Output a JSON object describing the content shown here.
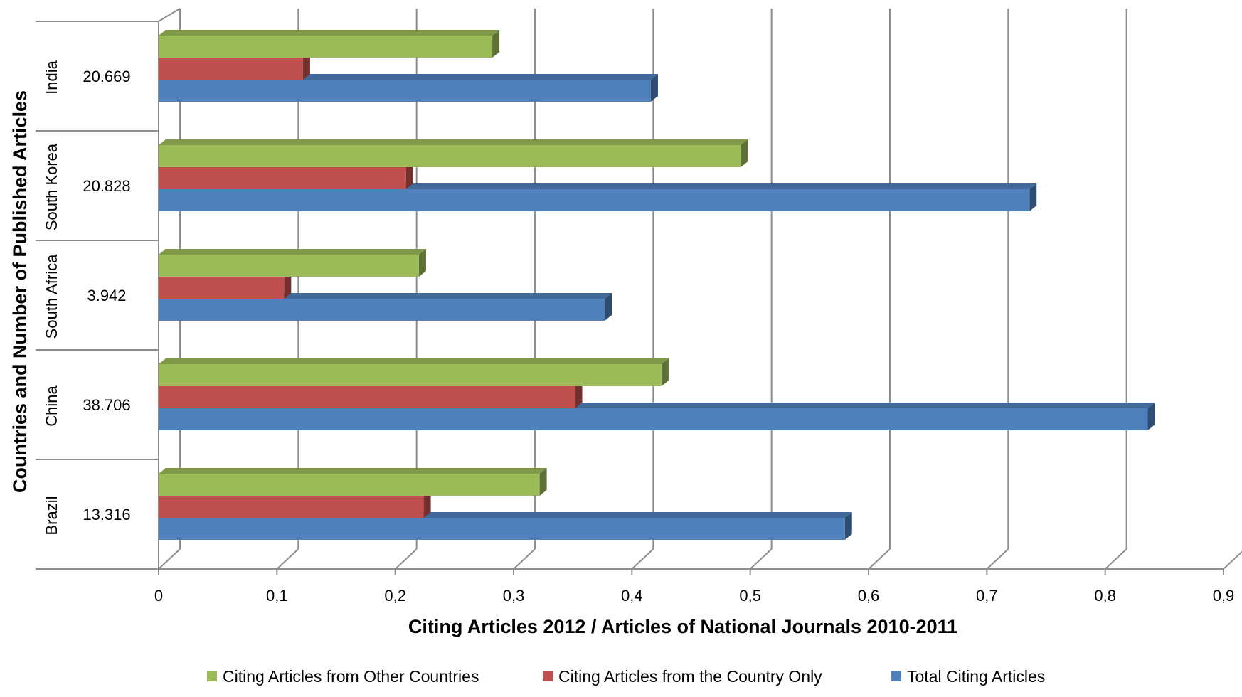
{
  "chart_data": {
    "type": "bar",
    "orientation": "horizontal",
    "style": "3d",
    "categories": [
      "India",
      "South Korea",
      "South Africa",
      "China",
      "Brazil"
    ],
    "category_counts": [
      "20.669",
      "20.828",
      "3.942",
      "38.706",
      "13.316"
    ],
    "series": [
      {
        "name": "Citing Articles from Other Countries",
        "color": "#9BBB59",
        "values": [
          0.282,
          0.492,
          0.22,
          0.425,
          0.322
        ]
      },
      {
        "name": "Citing Articles from the Country Only",
        "color": "#C0504D",
        "values": [
          0.122,
          0.209,
          0.106,
          0.352,
          0.224
        ]
      },
      {
        "name": "Total Citing Articles",
        "color": "#4F81BD",
        "values": [
          0.416,
          0.736,
          0.377,
          0.836,
          0.58
        ]
      }
    ],
    "xlim": [
      0,
      0.9
    ],
    "x_ticks": [
      "0",
      "0,1",
      "0,2",
      "0,3",
      "0,4",
      "0,5",
      "0,6",
      "0,7",
      "0,8",
      "0,9"
    ],
    "xlabel": "Citing Articles 2012 / Articles of National Journals 2010-2011",
    "ylabel": "Countries and Number of Published Articles",
    "grid": true,
    "legend_position": "bottom"
  }
}
